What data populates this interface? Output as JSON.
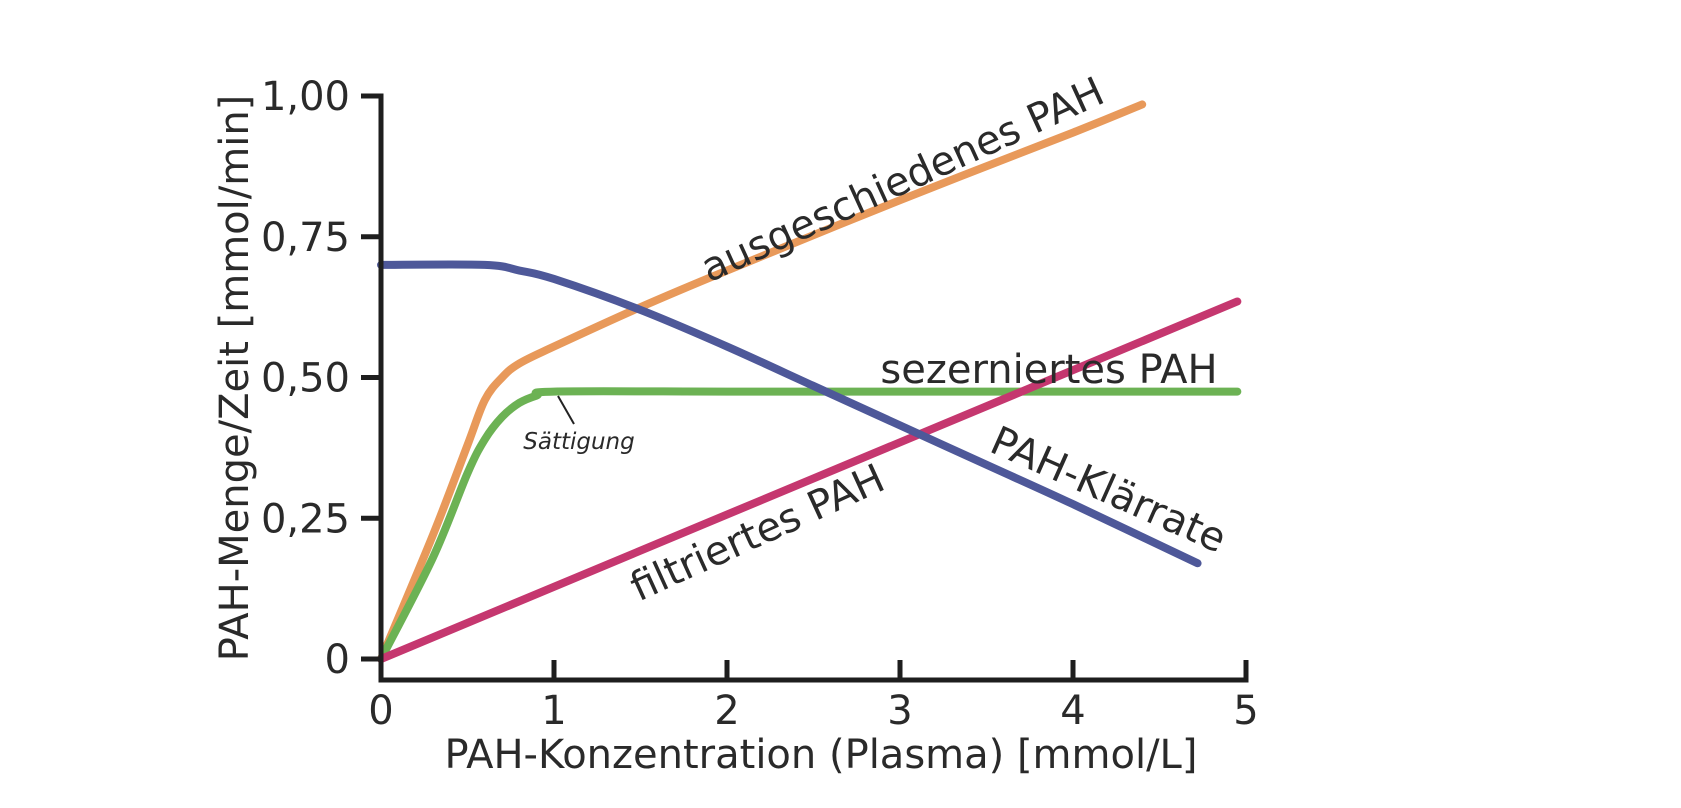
{
  "chart_data": {
    "type": "line",
    "title": "",
    "xlabel": "PAH-Konzentration (Plasma) [mmol/L]",
    "ylabel": "PAH-Menge/Zeit [mmol/min]",
    "xlim": [
      0,
      5
    ],
    "ylim": [
      0,
      1.0
    ],
    "x_ticks": [
      0,
      1,
      2,
      3,
      4,
      5
    ],
    "x_tick_labels": [
      "0",
      "1",
      "2",
      "3",
      "4",
      "5"
    ],
    "y_ticks": [
      0,
      0.25,
      0.5,
      0.75,
      1.0
    ],
    "y_tick_labels": [
      "0",
      "0,25",
      "0,50",
      "0,75",
      "1,00"
    ],
    "grid": false,
    "legend": "inline labels",
    "series": [
      {
        "name": "ausgeschiedenes PAH",
        "color": "#E8995A",
        "x": [
          0,
          0.3,
          0.5,
          0.6,
          0.7,
          0.8,
          1.0,
          1.5,
          2.0,
          3.0,
          4.0,
          4.4
        ],
        "y": [
          0,
          0.22,
          0.38,
          0.46,
          0.5,
          0.525,
          0.555,
          0.625,
          0.69,
          0.815,
          0.935,
          0.985
        ]
      },
      {
        "name": "sezerniertes PAH",
        "color": "#6CB254",
        "x": [
          0,
          0.3,
          0.5,
          0.6,
          0.7,
          0.8,
          0.9,
          1.0,
          2.0,
          3.0,
          4.0,
          4.95
        ],
        "y": [
          0,
          0.18,
          0.33,
          0.39,
          0.43,
          0.455,
          0.468,
          0.475,
          0.475,
          0.475,
          0.475,
          0.475
        ]
      },
      {
        "name": "filtriertes PAH",
        "color": "#C5376F",
        "x": [
          0,
          4.95
        ],
        "y": [
          0,
          0.635
        ]
      },
      {
        "name": "PAH-Klärrate",
        "color": "#4E5899",
        "x": [
          0,
          0.6,
          0.8,
          1.0,
          1.5,
          2.0,
          2.5,
          3.0,
          3.5,
          4.0,
          4.72
        ],
        "y": [
          0.7,
          0.7,
          0.69,
          0.675,
          0.62,
          0.555,
          0.485,
          0.415,
          0.345,
          0.275,
          0.17
        ]
      }
    ],
    "annotations": [
      {
        "text": "Sättigung",
        "x": 1.0,
        "y": 0.475
      }
    ]
  }
}
